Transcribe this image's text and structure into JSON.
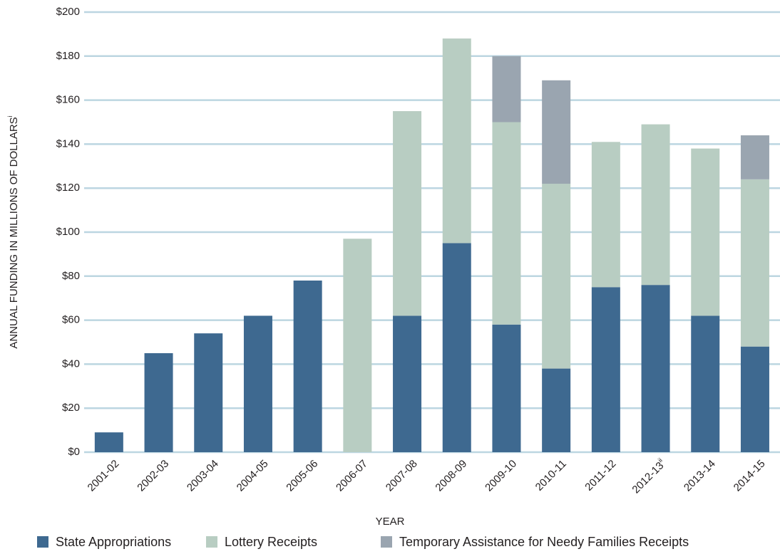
{
  "chart_data": {
    "type": "stacked_bar",
    "x_label": "YEAR",
    "y_label": "ANNUAL FUNDING IN MILLIONS OF DOLLARS",
    "y_label_note": "i",
    "categories": [
      "2001-02",
      "2002-03",
      "2003-04",
      "2004-05",
      "2005-06",
      "2006-07",
      "2007-08",
      "2008-09",
      "2009-10",
      "2010-11",
      "2011-12",
      "2012-13",
      "2013-14",
      "2014-15"
    ],
    "x_tick_notes": {
      "11": "ii"
    },
    "series": [
      {
        "name": "State Appropriations",
        "color": "#3e6990",
        "values": [
          9,
          45,
          54,
          62,
          78,
          null,
          62,
          95,
          58,
          38,
          75,
          76,
          62,
          48
        ]
      },
      {
        "name": "Lottery Receipts",
        "color": "#b8cdc2",
        "values": [
          null,
          null,
          null,
          null,
          null,
          97,
          93,
          93,
          92,
          84,
          66,
          73,
          76,
          76
        ]
      },
      {
        "name": "Temporary Assistance for Needy Families Receipts",
        "color": "#9aa5b0",
        "values": [
          null,
          null,
          null,
          null,
          null,
          null,
          null,
          null,
          30,
          47,
          null,
          null,
          null,
          20
        ]
      }
    ],
    "ylim": [
      0,
      200
    ],
    "yticks": [
      {
        "value": 0,
        "label": "$0"
      },
      {
        "value": 20,
        "label": "$20"
      },
      {
        "value": 40,
        "label": "$40"
      },
      {
        "value": 60,
        "label": "$60"
      },
      {
        "value": 80,
        "label": "$80"
      },
      {
        "value": 100,
        "label": "$100"
      },
      {
        "value": 120,
        "label": "$120"
      },
      {
        "value": 140,
        "label": "$140"
      },
      {
        "value": 160,
        "label": "$160"
      },
      {
        "value": 180,
        "label": "$180"
      },
      {
        "value": 200,
        "label": "$200"
      }
    ],
    "grid": true,
    "legend": "bottom"
  }
}
